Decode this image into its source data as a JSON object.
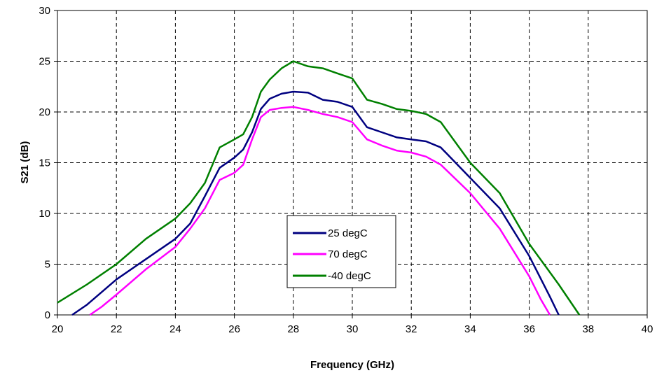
{
  "chart_data": {
    "type": "line",
    "xlabel": "Frequency (GHz)",
    "ylabel": "S21 (dB)",
    "xlim": [
      20,
      40
    ],
    "ylim": [
      0,
      30
    ],
    "xticks": [
      "20",
      "22",
      "24",
      "26",
      "28",
      "30",
      "32",
      "34",
      "36",
      "38",
      "40"
    ],
    "yticks": [
      "0",
      "5",
      "10",
      "15",
      "20",
      "25",
      "30"
    ],
    "grid": true,
    "legend_position": "center",
    "series": [
      {
        "name": "25 degC",
        "color": "#000080",
        "x": [
          20.5,
          21,
          22,
          23,
          24,
          24.5,
          25,
          25.5,
          26,
          26.3,
          26.6,
          26.9,
          27.2,
          27.6,
          28,
          28.5,
          29,
          29.5,
          30,
          30.5,
          31,
          31.5,
          32,
          32.5,
          33,
          34,
          35,
          36,
          36.7,
          37
        ],
        "y": [
          0,
          1,
          3.5,
          5.5,
          7.5,
          9,
          11.7,
          14.5,
          15.5,
          16.3,
          18,
          20.3,
          21.3,
          21.8,
          22,
          21.9,
          21.2,
          21,
          20.5,
          18.5,
          18,
          17.5,
          17.3,
          17.1,
          16.5,
          13.5,
          10.5,
          5.8,
          1.8,
          0
        ]
      },
      {
        "name": "70 degC",
        "color": "#ff00ff",
        "x": [
          21.1,
          21.5,
          22,
          23,
          24,
          24.5,
          25,
          25.5,
          26,
          26.3,
          26.6,
          26.9,
          27.2,
          27.6,
          28,
          28.5,
          29,
          29.5,
          30,
          30.5,
          31,
          31.5,
          32,
          32.5,
          33,
          34,
          35,
          36,
          36.4,
          36.7
        ],
        "y": [
          0,
          0.8,
          2,
          4.5,
          6.7,
          8.5,
          10.5,
          13.3,
          14,
          14.8,
          17.3,
          19.5,
          20.2,
          20.4,
          20.5,
          20.2,
          19.8,
          19.5,
          19,
          17.3,
          16.7,
          16.2,
          16,
          15.6,
          14.8,
          12,
          8.5,
          3.8,
          1.5,
          0
        ]
      },
      {
        "name": "-40 degC",
        "color": "#008000",
        "x": [
          20,
          21,
          22,
          23,
          24,
          24.5,
          25,
          25.5,
          26,
          26.3,
          26.6,
          26.9,
          27.2,
          27.6,
          28,
          28.5,
          29,
          29.5,
          30,
          30.5,
          31,
          31.5,
          32,
          32.5,
          33,
          34,
          35,
          36,
          37,
          37.7
        ],
        "y": [
          1.2,
          3,
          5,
          7.5,
          9.5,
          11,
          13,
          16.5,
          17.3,
          17.8,
          19.5,
          22,
          23.2,
          24.3,
          25,
          24.5,
          24.3,
          23.8,
          23.3,
          21.2,
          20.8,
          20.3,
          20.1,
          19.8,
          19,
          15,
          12,
          7,
          3,
          0
        ]
      }
    ]
  }
}
